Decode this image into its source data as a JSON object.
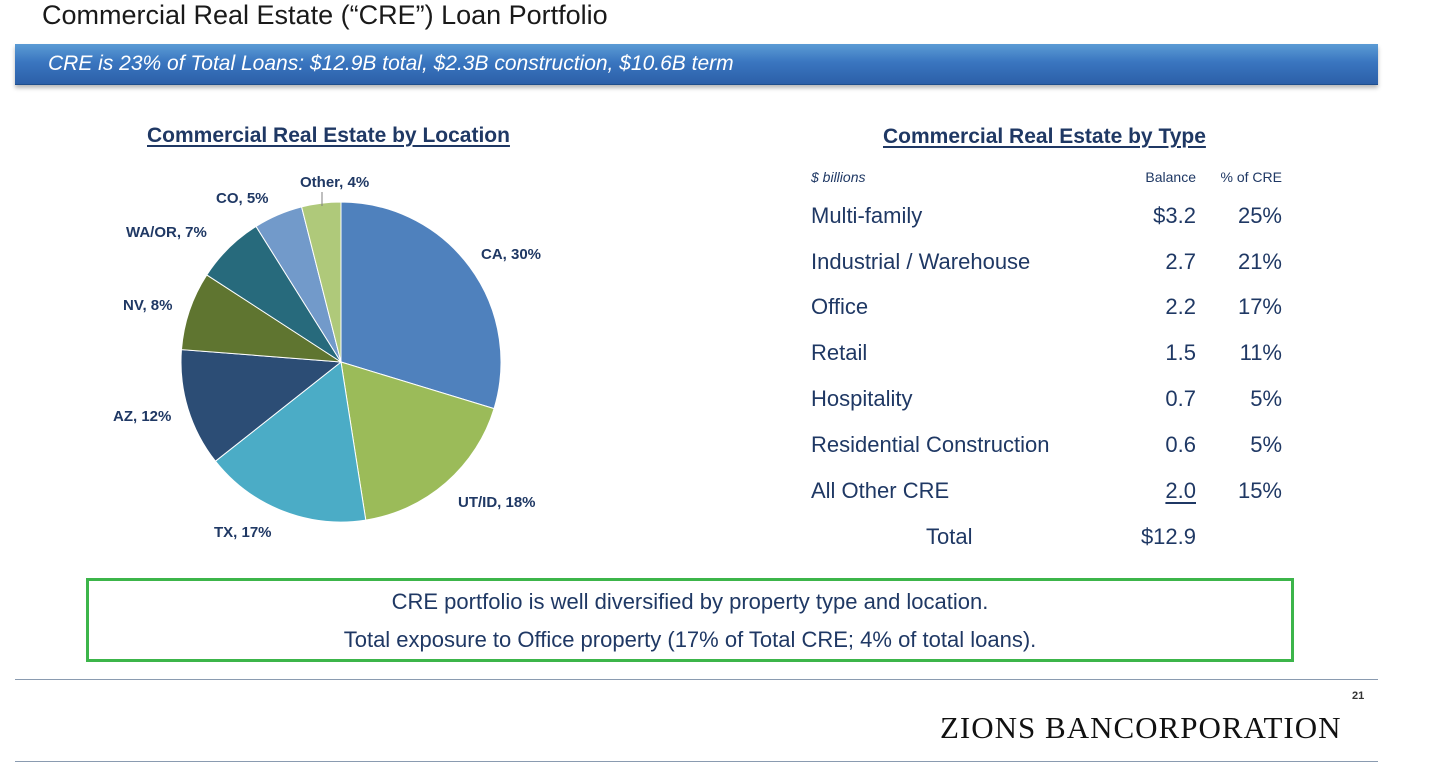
{
  "header": {
    "title": "Commercial Real Estate (“CRE”) Loan Portfolio",
    "banner": "CRE is 23% of Total Loans: $12.9B total, $2.3B construction, $10.6B term"
  },
  "colors": {
    "banner": "#2e66ad",
    "text": "#1f3864",
    "callout_border": "#3cb54a"
  },
  "chart_data": [
    {
      "type": "pie",
      "title": "Commercial Real Estate by Location",
      "slices": [
        {
          "label": "CA, 30%",
          "name": "CA",
          "value": 30,
          "color": "#4f81bd"
        },
        {
          "label": "UT/ID, 18%",
          "name": "UT/ID",
          "value": 18,
          "color": "#9bbb59"
        },
        {
          "label": "TX, 17%",
          "name": "TX",
          "value": 17,
          "color": "#4bacc6"
        },
        {
          "label": "AZ, 12%",
          "name": "AZ",
          "value": 12,
          "color": "#2c4d75"
        },
        {
          "label": "NV, 8%",
          "name": "NV",
          "value": 8,
          "color": "#5f7530"
        },
        {
          "label": "WA/OR, 7%",
          "name": "WA/OR",
          "value": 7,
          "color": "#276a7c"
        },
        {
          "label": "CO, 5%",
          "name": "CO",
          "value": 5,
          "color": "#729aca"
        },
        {
          "label": "Other, 4%",
          "name": "Other",
          "value": 4,
          "color": "#afc97a"
        }
      ]
    },
    {
      "type": "table",
      "title": "Commercial Real Estate by Type",
      "unit": "$ billions",
      "columns": [
        "Balance",
        "% of CRE"
      ],
      "rows": [
        {
          "category": "Multi-family",
          "balance": "$3.2",
          "pct": "25%"
        },
        {
          "category": "Industrial / Warehouse",
          "balance": "2.7",
          "pct": "21%"
        },
        {
          "category": "Office",
          "balance": "2.2",
          "pct": "17%"
        },
        {
          "category": "Retail",
          "balance": "1.5",
          "pct": "11%"
        },
        {
          "category": "Hospitality",
          "balance": "0.7",
          "pct": "5%"
        },
        {
          "category": "Residential Construction",
          "balance": "0.6",
          "pct": "5%"
        },
        {
          "category": "All Other CRE",
          "balance": "2.0",
          "pct": "15%"
        }
      ],
      "total": {
        "label": "Total",
        "balance": "$12.9"
      }
    }
  ],
  "callout": {
    "line1": "CRE portfolio is well diversified by property type and location.",
    "line2": "Total exposure to Office property (17% of Total CRE; 4% of total loans)."
  },
  "footer": {
    "page_number": "21",
    "logo": "ZIONS BANCORPORATION"
  }
}
